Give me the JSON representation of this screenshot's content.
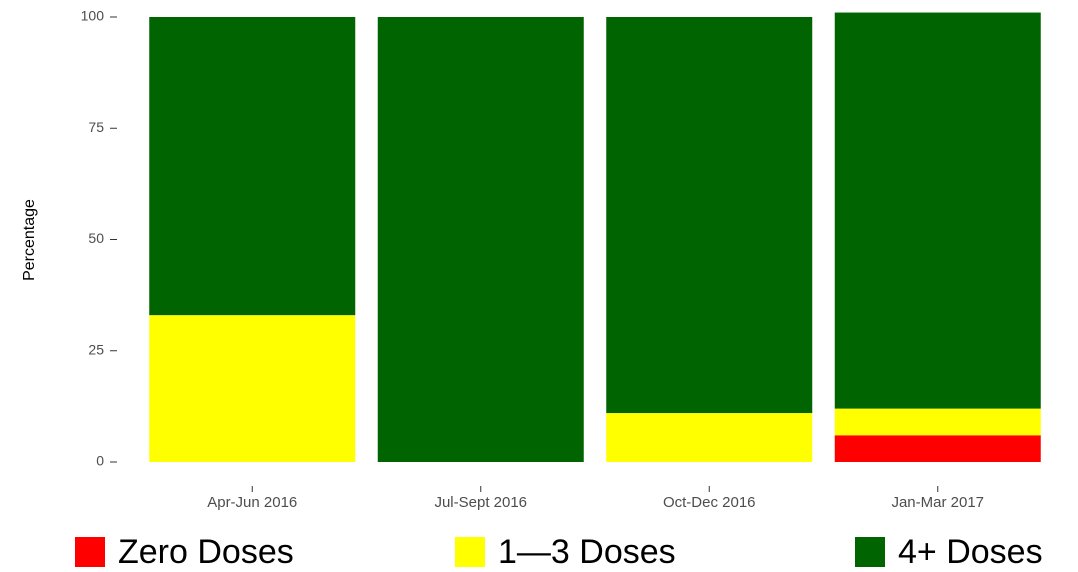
{
  "chart_data": {
    "type": "stacked_bar",
    "y_label": "Percentage",
    "categories": [
      "Apr-Jun 2016",
      "Jul-Sept 2016",
      "Oct-Dec 2016",
      "Jan-Mar 2017"
    ],
    "series": [
      {
        "name": "Zero Doses",
        "color": "#ff0000",
        "values": [
          0,
          0,
          0,
          6
        ]
      },
      {
        "name": "1—3 Doses",
        "color": "#ffff00",
        "values": [
          33,
          0,
          11,
          6
        ]
      },
      {
        "name": "4+ Doses",
        "color": "#006400",
        "values": [
          67,
          100,
          89,
          89
        ]
      }
    ],
    "ylim": [
      0,
      100
    ],
    "yticks": [
      0,
      25,
      50,
      75,
      100
    ],
    "legend": "bottom"
  }
}
